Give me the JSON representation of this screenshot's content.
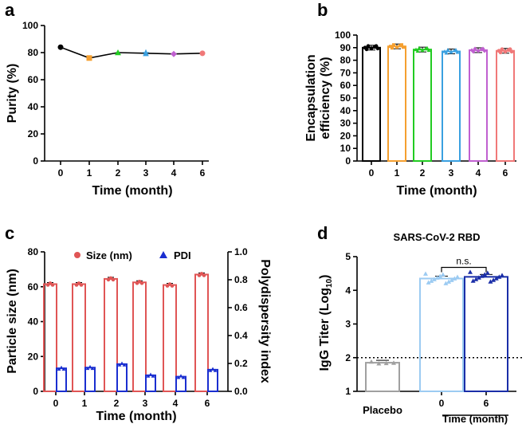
{
  "chart_data": [
    {
      "panel": "a",
      "type": "line",
      "title": "",
      "xlabel": "Time (month)",
      "ylabel": "Purity (%)",
      "categories": [
        "0",
        "1",
        "2",
        "3",
        "4",
        "6"
      ],
      "values": [
        84,
        76,
        80,
        79.5,
        79,
        79.5
      ],
      "colors": [
        "#000000",
        "#f5a030",
        "#22cc22",
        "#3aa0e0",
        "#c060d0",
        "#f07878"
      ],
      "ylim": [
        0,
        100
      ],
      "yticks": [
        "0",
        "20",
        "40",
        "60",
        "80",
        "100"
      ]
    },
    {
      "panel": "b",
      "type": "bar",
      "xlabel": "Time (month)",
      "ylabel": "Encapsulation efficiency (%)",
      "ylabel_lines": [
        "Encapsulation",
        "efficiency (%)"
      ],
      "categories": [
        "0",
        "1",
        "2",
        "3",
        "4",
        "6"
      ],
      "values": [
        90,
        91,
        88.5,
        87,
        88,
        87.5
      ],
      "colors": [
        "#000000",
        "#f5a030",
        "#22cc22",
        "#3aa0e0",
        "#c060d0",
        "#f07878"
      ],
      "ylim": [
        0,
        100
      ],
      "yticks": [
        "0",
        "10",
        "20",
        "30",
        "40",
        "50",
        "60",
        "70",
        "80",
        "90",
        "100"
      ]
    },
    {
      "panel": "c",
      "type": "bar",
      "xlabel": "Time (month)",
      "ylabel": "Particle size (nm)",
      "y2label": "Polydispersity index",
      "categories": [
        "0",
        "1",
        "2",
        "3",
        "4",
        "6"
      ],
      "series": [
        {
          "name": "Size (nm)",
          "axis": "left",
          "color": "#e05555",
          "values": [
            61.5,
            61.5,
            64.5,
            62.5,
            61,
            67
          ]
        },
        {
          "name": "PDI",
          "axis": "right",
          "color": "#1a2ed0",
          "values": [
            0.165,
            0.17,
            0.195,
            0.115,
            0.105,
            0.155
          ]
        }
      ],
      "ylim": [
        0,
        80
      ],
      "y2lim": [
        0,
        1.0
      ],
      "yticks": [
        "0",
        "20",
        "40",
        "60",
        "80"
      ],
      "y2ticks": [
        "0.0",
        "0.2",
        "0.4",
        "0.6",
        "0.8",
        "1.0"
      ],
      "legend": [
        "Size (nm)",
        "PDI"
      ]
    },
    {
      "panel": "d",
      "type": "bar",
      "title": "SARS-CoV-2 RBD",
      "ylabel": "IgG Titer (Log10)",
      "ylabel_main": "IgG Titer (Log",
      "ylabel_sub": "10",
      "ylabel_end": ")",
      "xlabel": "Time (month)",
      "categories": [
        "Placebo",
        "0",
        "6"
      ],
      "values": [
        1.85,
        4.35,
        4.4
      ],
      "colors": [
        "#a0a0a0",
        "#9ccbf2",
        "#1a2ea8"
      ],
      "ylim": [
        1,
        5
      ],
      "yticks": [
        "1",
        "2",
        "3",
        "4",
        "5"
      ],
      "reference_line": 2,
      "annotation": "n.s."
    }
  ],
  "panel_labels": [
    "a",
    "b",
    "c",
    "d"
  ]
}
